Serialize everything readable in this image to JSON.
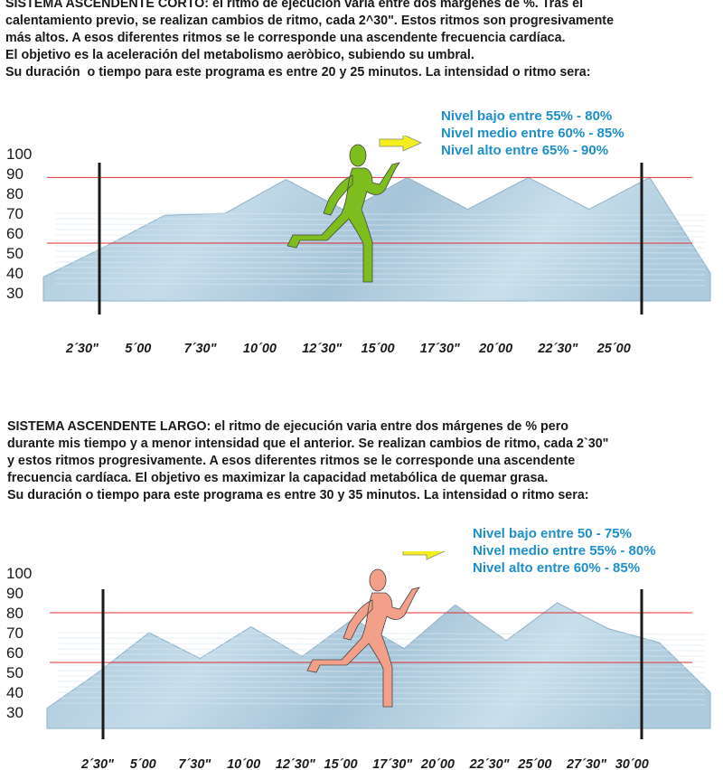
{
  "section1": {
    "lines": [
      {
        "title": "SISTEMA ASCENDENTE CORTO:",
        "text": " el ritmo de ejecución varia entre dos márgenes de %. Tras el"
      },
      {
        "title": "",
        "text": "calentamiento previo, se realizan cambios de ritmo, cada 2^30\". Estos ritmos son progresivamente"
      },
      {
        "title": "",
        "text": "más altos. A esos diferentes ritmos se le corresponde una ascendente frecuencia cardíaca."
      },
      {
        "title": "",
        "text": "El objetivo es la aceleración del metabolismo aeròbico, subiendo su umbral."
      },
      {
        "title": "",
        "text": "Su duración  o tiempo para este programa es entre 20 y 25 minutos. La intensidad o ritmo sera:"
      }
    ],
    "levels": [
      "Nivel bajo entre 55% - 80%",
      "Nivel medio entre 60% - 85%",
      "Nivel alto entre 65% - 90%"
    ],
    "runner_color": "#7dbd1e"
  },
  "section2": {
    "lines": [
      {
        "title": "SISTEMA ASCENDENTE LARGO:",
        "text": " el ritmo de ejecución varia entre dos márgenes de % pero"
      },
      {
        "title": "",
        "text": "durante mis tiempo y a menor intensidad que el anterior. Se realizan cambios de ritmo, cada 2`30\""
      },
      {
        "title": "",
        "text": "y estos ritmos progresivamente. A esos diferentes ritmos se le corresponde una ascendente"
      },
      {
        "title": "",
        "text": "frecuencia cardíaca. El objetivo es maximizar la capacidad metabólica de quemar grasa."
      },
      {
        "title": "",
        "text": "Su duración o tiempo para este programa es entre 30 y 35 minutos. La intensidad o ritmo sera:"
      }
    ],
    "levels": [
      "Nivel bajo entre 50 - 75%",
      "Nivel medio entre 55% - 80%",
      "Nivel alto entre 60% - 85%"
    ],
    "runner_color": "#f2a08a"
  },
  "colors": {
    "area_fill": "#b4cfe0",
    "area_stroke": "#8fb3c8",
    "threshold_line": "#e03030",
    "arrow": "#f5ee1e",
    "levels_text": "#1e8fc9"
  },
  "chart_data": [
    {
      "type": "area",
      "y_ticks": [
        "100",
        "90",
        "80",
        "70",
        "60",
        "50",
        "40",
        "30"
      ],
      "x_ticks": [
        "2´30\"",
        "5´00",
        "7´30\"",
        "10´00",
        "12´30\"",
        "15´00",
        "17´30\"",
        "20´00",
        "22´30\"",
        "25´00"
      ],
      "ylim": [
        30,
        100
      ],
      "thresholds": [
        55,
        88
      ],
      "profile_minutes": [
        0,
        2.5,
        5,
        7.5,
        10,
        12.5,
        15,
        17.5,
        20,
        22.5,
        25,
        27.5
      ],
      "profile_values": [
        38,
        53,
        69,
        70,
        87,
        71,
        88,
        72,
        88,
        72,
        88,
        40
      ],
      "marks_minutes": [
        2.5,
        25
      ]
    },
    {
      "type": "area",
      "y_ticks": [
        "100",
        "90",
        "80",
        "70",
        "60",
        "50",
        "40",
        "30"
      ],
      "x_ticks": [
        "2´30\"",
        "5´00",
        "7´30\"",
        "10´00",
        "12´30\"",
        "15´00",
        "17´30\"",
        "20´00",
        "22´30\"",
        "25´00",
        "27´30\"",
        "30´00"
      ],
      "ylim": [
        30,
        100
      ],
      "thresholds": [
        55,
        80
      ],
      "profile_minutes": [
        0,
        2.5,
        5,
        7.5,
        10,
        12.5,
        15,
        17.5,
        20,
        22.5,
        25,
        27.5,
        30,
        32.5
      ],
      "profile_values": [
        32,
        50,
        70,
        57,
        73,
        58,
        77,
        62,
        84,
        66,
        85,
        72,
        65,
        40
      ],
      "marks_minutes": [
        2.5,
        30
      ]
    }
  ]
}
